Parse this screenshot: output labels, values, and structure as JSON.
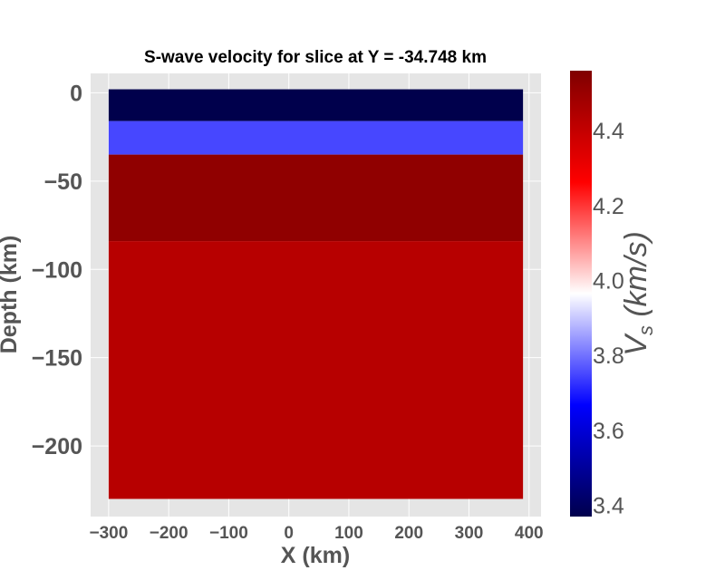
{
  "chart_data": {
    "type": "heatmap",
    "title": "S-wave velocity for slice at Y = -34.748 km",
    "xlabel": "X (km)",
    "ylabel": "Depth (km)",
    "colorbar_label": "V_s (km/s)",
    "colormap": "seismic",
    "xlim": [
      -330,
      420
    ],
    "ylim": [
      -240,
      11
    ],
    "x_extent": [
      -300,
      390
    ],
    "x_ticks": [
      -300,
      -200,
      -100,
      0,
      100,
      200,
      300,
      400
    ],
    "y_ticks": [
      0,
      -50,
      -100,
      -150,
      -200
    ],
    "x_tick_labels": [
      "−300",
      "−200",
      "−100",
      "0",
      "100",
      "200",
      "300",
      "400"
    ],
    "y_tick_labels": [
      "0",
      "−50",
      "−100",
      "−150",
      "−200"
    ],
    "layers": [
      {
        "top": 2,
        "bottom": -16,
        "vs": 3.37
      },
      {
        "top": -16,
        "bottom": -35,
        "vs": 3.75
      },
      {
        "top": -35,
        "bottom": -84,
        "vs": 4.52
      },
      {
        "top": -84,
        "bottom": -230,
        "vs": 4.43
      }
    ],
    "colorbar": {
      "vmin": 3.37,
      "vmax": 4.56,
      "ticks": [
        3.4,
        3.6,
        3.8,
        4.0,
        4.2,
        4.4
      ],
      "tick_labels": [
        "3.4",
        "3.6",
        "3.8",
        "4.0",
        "4.2",
        "4.4"
      ]
    },
    "grid": true,
    "colors": {
      "axes_bg": "#e5e5e5",
      "grid": "#ffffff",
      "tick_text": "#555555",
      "title_text": "#000000"
    }
  }
}
